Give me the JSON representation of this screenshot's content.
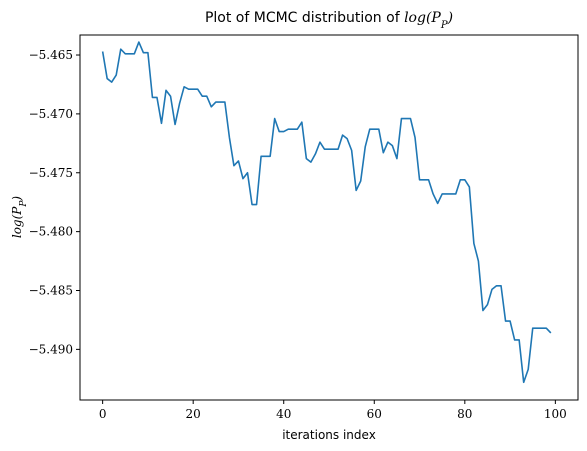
{
  "chart_data": {
    "type": "line",
    "title": "Plot of MCMC distribution of log(P_P)",
    "title_prefix": "Plot of MCMC distribution of ",
    "title_math": "log(P",
    "title_math_sub": "P",
    "title_math_close": ")",
    "xlabel": "iterations index",
    "ylabel": "log(P_P)",
    "ylabel_math": "log(P",
    "ylabel_math_sub": "P",
    "ylabel_math_close": ")",
    "xlim": [
      -5,
      105
    ],
    "ylim": [
      -5.4943,
      -5.4633
    ],
    "x_ticks": [
      0,
      20,
      40,
      60,
      80,
      100
    ],
    "y_ticks": [
      -5.465,
      -5.47,
      -5.475,
      -5.48,
      -5.485,
      -5.49
    ],
    "x_tick_labels": [
      "0",
      "20",
      "40",
      "60",
      "80",
      "100"
    ],
    "y_tick_labels": [
      "−5.465",
      "−5.470",
      "−5.475",
      "−5.480",
      "−5.485",
      "−5.490"
    ],
    "grid": false,
    "legend": "none",
    "series": [
      {
        "color": "#1f77b4",
        "x": [
          0,
          1,
          2,
          3,
          4,
          5,
          6,
          7,
          8,
          9,
          10,
          11,
          12,
          13,
          14,
          15,
          16,
          17,
          18,
          19,
          20,
          21,
          22,
          23,
          24,
          25,
          26,
          27,
          28,
          29,
          30,
          31,
          32,
          33,
          34,
          35,
          36,
          37,
          38,
          39,
          40,
          41,
          42,
          43,
          44,
          45,
          46,
          47,
          48,
          49,
          50,
          51,
          52,
          53,
          54,
          55,
          56,
          57,
          58,
          59,
          60,
          61,
          62,
          63,
          64,
          65,
          66,
          67,
          68,
          69,
          70,
          71,
          72,
          73,
          74,
          75,
          76,
          77,
          78,
          79,
          80,
          81,
          82,
          83,
          84,
          85,
          86,
          87,
          88,
          89,
          90,
          91,
          92,
          93,
          94,
          95,
          96,
          97,
          98,
          99
        ],
        "y": [
          -5.4647,
          -5.467,
          -5.4673,
          -5.4667,
          -5.4645,
          -5.4649,
          -5.4649,
          -5.4649,
          -5.4639,
          -5.4648,
          -5.4648,
          -5.4686,
          -5.4686,
          -5.4708,
          -5.468,
          -5.4685,
          -5.4709,
          -5.4691,
          -5.4677,
          -5.4679,
          -5.4679,
          -5.4679,
          -5.4685,
          -5.4685,
          -5.4694,
          -5.469,
          -5.469,
          -5.469,
          -5.472,
          -5.4744,
          -5.474,
          -5.4755,
          -5.475,
          -5.4777,
          -5.4777,
          -5.4736,
          -5.4736,
          -5.4736,
          -5.4704,
          -5.4715,
          -5.4715,
          -5.4713,
          -5.4713,
          -5.4713,
          -5.4707,
          -5.4738,
          -5.4741,
          -5.4734,
          -5.4724,
          -5.473,
          -5.473,
          -5.473,
          -5.473,
          -5.4718,
          -5.4721,
          -5.4731,
          -5.4765,
          -5.4757,
          -5.4728,
          -5.4713,
          -5.4713,
          -5.4713,
          -5.4733,
          -5.4724,
          -5.4727,
          -5.4738,
          -5.4704,
          -5.4704,
          -5.4704,
          -5.472,
          -5.4756,
          -5.4756,
          -5.4756,
          -5.4768,
          -5.4776,
          -5.4768,
          -5.4768,
          -5.4768,
          -5.4768,
          -5.4756,
          -5.4756,
          -5.4762,
          -5.481,
          -5.4825,
          -5.4867,
          -5.4862,
          -5.4849,
          -5.4846,
          -5.4846,
          -5.4876,
          -5.4876,
          -5.4892,
          -5.4892,
          -5.4928,
          -5.4917,
          -5.4882,
          -5.4882,
          -5.4882,
          -5.4882,
          -5.4886
        ]
      }
    ]
  }
}
